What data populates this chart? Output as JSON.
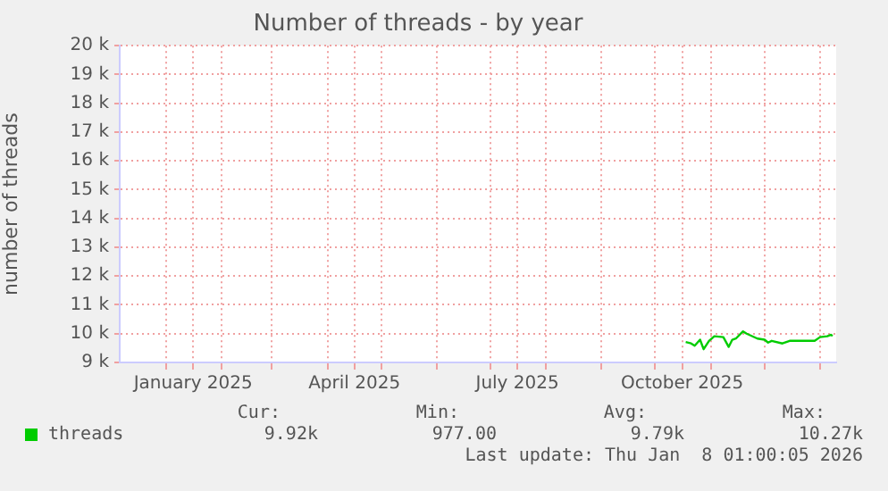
{
  "chart_data": {
    "type": "line",
    "title": "Number of threads - by year",
    "ylabel": "number of threads",
    "x": [
      "2025-10-18",
      "2025-10-21",
      "2025-10-23",
      "2025-10-26",
      "2025-10-28",
      "2025-10-31",
      "2025-11-03",
      "2025-11-08",
      "2025-11-11",
      "2025-11-13",
      "2025-11-15",
      "2025-11-19",
      "2025-11-21",
      "2025-11-27",
      "2025-12-01",
      "2025-12-03",
      "2025-12-05",
      "2025-12-11",
      "2025-12-15",
      "2025-12-29",
      "2026-01-01",
      "2026-01-05",
      "2026-01-07",
      "2026-01-08"
    ],
    "series": [
      {
        "name": "threads",
        "color": "#00cc00",
        "values": [
          9710,
          9660,
          9580,
          9790,
          9460,
          9750,
          9910,
          9880,
          9540,
          9790,
          9830,
          10080,
          10000,
          9830,
          9790,
          9690,
          9750,
          9660,
          9750,
          9750,
          9880,
          9910,
          9960,
          9920
        ]
      }
    ],
    "xlim": [
      "2024-12-06",
      "2026-01-10"
    ],
    "xticks": [
      {
        "value": "2025-01-01",
        "label": null
      },
      {
        "value": "2025-01-16",
        "label": "January 2025"
      },
      {
        "value": "2025-02-01",
        "label": null
      },
      {
        "value": "2025-03-01",
        "label": null
      },
      {
        "value": "2025-04-01",
        "label": null
      },
      {
        "value": "2025-04-16",
        "label": "April 2025"
      },
      {
        "value": "2025-05-01",
        "label": null
      },
      {
        "value": "2025-06-01",
        "label": null
      },
      {
        "value": "2025-07-01",
        "label": null
      },
      {
        "value": "2025-07-16",
        "label": "July 2025"
      },
      {
        "value": "2025-08-01",
        "label": null
      },
      {
        "value": "2025-09-01",
        "label": null
      },
      {
        "value": "2025-10-01",
        "label": null
      },
      {
        "value": "2025-10-16",
        "label": "October 2025"
      },
      {
        "value": "2025-11-01",
        "label": null
      },
      {
        "value": "2025-12-01",
        "label": null
      },
      {
        "value": "2026-01-01",
        "label": null
      }
    ],
    "ylim": [
      9000,
      20000
    ],
    "yticks": [
      {
        "value": 9000,
        "label": "9 k"
      },
      {
        "value": 10000,
        "label": "10 k"
      },
      {
        "value": 11000,
        "label": "11 k"
      },
      {
        "value": 12000,
        "label": "12 k"
      },
      {
        "value": 13000,
        "label": "13 k"
      },
      {
        "value": 14000,
        "label": "14 k"
      },
      {
        "value": 15000,
        "label": "15 k"
      },
      {
        "value": 16000,
        "label": "16 k"
      },
      {
        "value": 17000,
        "label": "17 k"
      },
      {
        "value": 18000,
        "label": "18 k"
      },
      {
        "value": 19000,
        "label": "19 k"
      },
      {
        "value": 20000,
        "label": "20 k"
      }
    ],
    "grid": true,
    "legend": "bottom",
    "line_style": "solid",
    "marker": "none",
    "annotations": [
      "Cur:",
      "Min:",
      "Avg:",
      "Max:",
      "9.92k",
      "977.00",
      "9.79k",
      "10.27k",
      "Last update: Thu Jan  8 01:00:05 2026"
    ]
  }
}
